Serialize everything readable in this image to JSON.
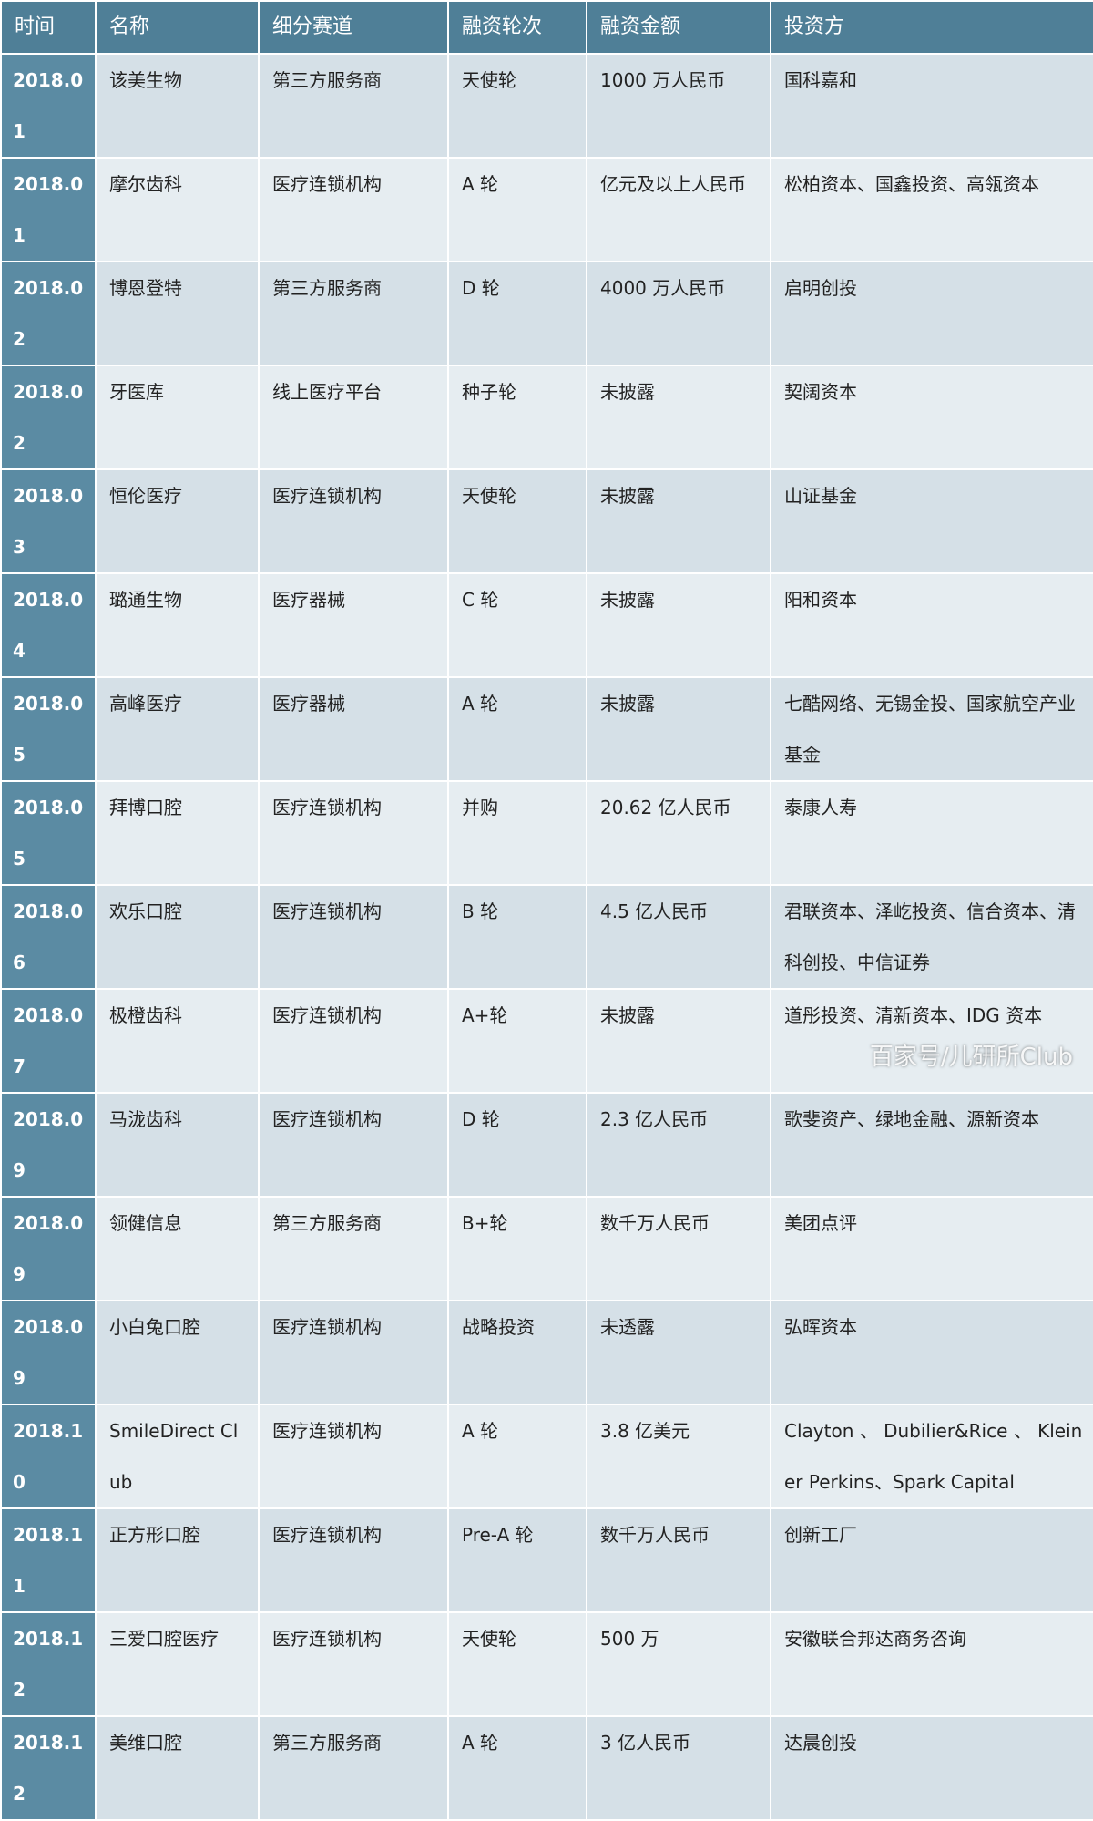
{
  "table": {
    "header": [
      "时间",
      "名称",
      "细分赛道",
      "融资轮次",
      "融资金额",
      "投资方"
    ],
    "rows": [
      [
        "2018.01",
        "该美生物",
        "第三方服务商",
        "天使轮",
        "1000 万人民币",
        "国科嘉和"
      ],
      [
        "2018.01",
        "摩尔齿科",
        "医疗连锁机构",
        "A 轮",
        "亿元及以上人民币",
        "松柏资本、国鑫投资、高瓴资本"
      ],
      [
        "2018.02",
        "博恩登特",
        "第三方服务商",
        "D 轮",
        "4000 万人民币",
        "启明创投"
      ],
      [
        "2018.02",
        "牙医库",
        "线上医疗平台",
        "种子轮",
        "未披露",
        "契阔资本"
      ],
      [
        "2018.03",
        "恒伦医疗",
        "医疗连锁机构",
        "天使轮",
        "未披露",
        "山证基金"
      ],
      [
        "2018.04",
        "璐通生物",
        "医疗器械",
        "C 轮",
        "未披露",
        "阳和资本"
      ],
      [
        "2018.05",
        "高峰医疗",
        "医疗器械",
        "A 轮",
        "未披露",
        "七酷网络、无锡金投、国家航空产业基金"
      ],
      [
        "2018.05",
        "拜博口腔",
        "医疗连锁机构",
        "并购",
        "20.62 亿人民币",
        "泰康人寿"
      ],
      [
        "2018.06",
        "欢乐口腔",
        "医疗连锁机构",
        "B 轮",
        "4.5 亿人民币",
        "君联资本、泽屹投资、信合资本、清科创投、中信证券"
      ],
      [
        "2018.07",
        "极橙齿科",
        "医疗连锁机构",
        "A+轮",
        "未披露",
        "道彤投资、清新资本、IDG 资本"
      ],
      [
        "2018.09",
        "马泷齿科",
        "医疗连锁机构",
        "D 轮",
        "2.3 亿人民币",
        "歌斐资产、绿地金融、源新资本"
      ],
      [
        "2018.09",
        "领健信息",
        "第三方服务商",
        "B+轮",
        "数千万人民币",
        "美团点评"
      ],
      [
        "2018.09",
        "小白兔口腔",
        "医疗连锁机构",
        "战略投资",
        "未透露",
        "弘晖资本"
      ],
      [
        "2018.10",
        "SmileDirect Club",
        "医疗连锁机构",
        "A 轮",
        "3.8 亿美元",
        "Clayton 、 Dubilier&Rice 、 Kleiner Perkins、Spark Capital"
      ],
      [
        "2018.11",
        "正方形口腔",
        "医疗连锁机构",
        "Pre-A 轮",
        "数千万人民币",
        "创新工厂"
      ],
      [
        "2018.12",
        "三爱口腔医疗",
        "医疗连锁机构",
        "天使轮",
        "500 万",
        "安徽联合邦达商务咨询"
      ],
      [
        "2018.12",
        "美维口腔",
        "第三方服务商",
        "A 轮",
        "3 亿人民币",
        "达晨创投"
      ]
    ]
  },
  "watermark": "百家号/儿研所Club"
}
